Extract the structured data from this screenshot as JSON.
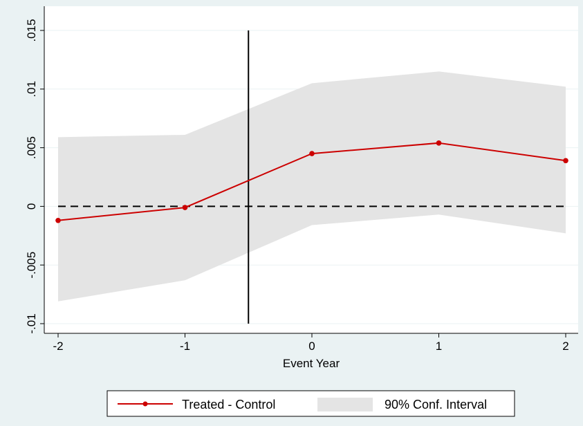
{
  "chart_data": {
    "type": "line",
    "xlabel": "Event Year",
    "ylabel": "",
    "x": [
      -2,
      -1,
      0,
      1,
      2
    ],
    "xticks": [
      "-2",
      "-1",
      "0",
      "1",
      "2"
    ],
    "xlim": [
      -2,
      2
    ],
    "ylim": [
      -0.0101,
      0.0151
    ],
    "yticks": [
      -0.01,
      -0.005,
      0,
      0.005,
      0.01,
      0.015
    ],
    "ytick_labels": [
      "-.01",
      "-.005",
      "0",
      ".005",
      ".01",
      ".015"
    ],
    "series": [
      {
        "name": "Treated - Control",
        "values": [
          -0.0012,
          -0.0001,
          0.0045,
          0.0054,
          0.0039
        ],
        "color": "#cc0000"
      }
    ],
    "confidence_interval": {
      "name": "90% Conf. Interval",
      "lower": [
        -0.0081,
        -0.0063,
        -0.0016,
        -0.0007,
        -0.0023
      ],
      "upper": [
        0.0059,
        0.0061,
        0.0105,
        0.0115,
        0.0102
      ],
      "color": "#e4e4e4"
    },
    "reference_lines": {
      "vertical_x": -0.5,
      "horizontal_y": 0
    },
    "grid": true,
    "legend_position": "bottom",
    "colors": {
      "background": "#eaf2f3",
      "plot_background": "#ffffff",
      "grid": "#eaf2f3"
    }
  }
}
